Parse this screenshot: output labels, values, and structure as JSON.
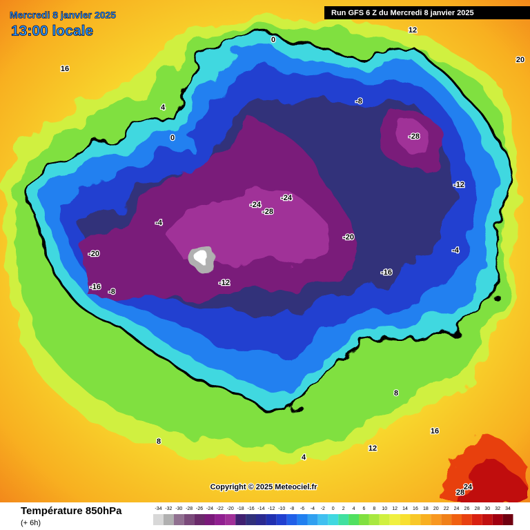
{
  "header": {
    "title": "Mercredi 8 janvier 2025",
    "subtitle": "13:00 locale",
    "run": "Run GFS 6 Z du Mercredi 8 janvier 2025"
  },
  "map": {
    "labels": [
      "-28",
      "-24",
      "-28",
      "-24",
      "-20",
      "-20",
      "-16",
      "-16",
      "-12",
      "-12",
      "-8",
      "-8",
      "-4",
      "-4",
      "0",
      "0",
      "4",
      "4",
      "8",
      "8",
      "12",
      "12",
      "16",
      "16",
      "20",
      "24",
      "28"
    ],
    "copyright": "Copyright © 2025 Meteociel.fr"
  },
  "footer": {
    "title": "Température 850hPa",
    "subtitle": "(+ 6h)",
    "scale": {
      "values": [
        -34,
        -32,
        -30,
        -28,
        -26,
        -24,
        -22,
        -20,
        -18,
        -16,
        -14,
        -12,
        -10,
        -8,
        -6,
        -4,
        -2,
        0,
        2,
        4,
        6,
        8,
        10,
        12,
        14,
        16,
        18,
        20,
        22,
        24,
        26,
        28,
        30,
        32,
        34
      ],
      "colors": [
        "#d8d8d8",
        "#b0b0b0",
        "#907090",
        "#7a4a7a",
        "#6a2a6a",
        "#7a1a7a",
        "#902090",
        "#a03098",
        "#402070",
        "#30307a",
        "#2a2a90",
        "#2030b0",
        "#2040d0",
        "#2060e8",
        "#2080f0",
        "#30a0f0",
        "#40c0f0",
        "#40d8e0",
        "#40e0a0",
        "#50e060",
        "#80e040",
        "#a8e840",
        "#d0f040",
        "#f0f040",
        "#f8e030",
        "#f8c828",
        "#f8b020",
        "#f89820",
        "#f08018",
        "#f06010",
        "#e84010",
        "#d82010",
        "#c01010",
        "#a00010",
        "#700010"
      ]
    }
  }
}
